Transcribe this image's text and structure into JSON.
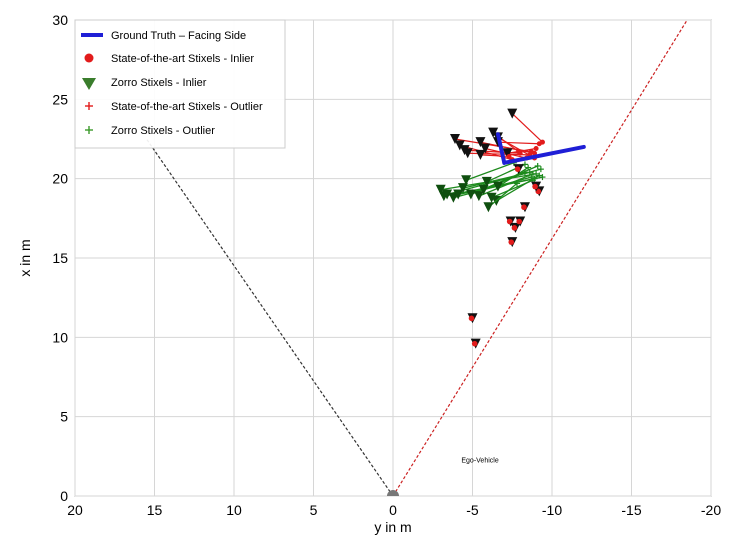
{
  "chart_data": {
    "type": "scatter",
    "xlabel": "y in m",
    "ylabel": "x in m",
    "xlim": [
      20,
      -20
    ],
    "ylim": [
      0,
      30
    ],
    "x_ticks": [
      "20",
      "15",
      "10",
      "5",
      "0",
      "-5",
      "-10",
      "-15",
      "-20"
    ],
    "y_ticks": [
      "0",
      "5",
      "10",
      "15",
      "20",
      "25",
      "30"
    ],
    "grid": true,
    "legend_placement": "top-left",
    "legend": [
      {
        "label": "Ground Truth – Facing Side",
        "marker": "line",
        "color": "#1f1fd6"
      },
      {
        "label": "State-of-the-art Stixels - Inlier",
        "marker": "circle",
        "color": "#e21b1b"
      },
      {
        "label": "Zorro Stixels - Inlier",
        "marker": "triangle-down",
        "color": "#3a7d2c"
      },
      {
        "label": "State-of-the-art Stixels - Outlier",
        "marker": "plus",
        "color": "#e21b1b"
      },
      {
        "label": "Zorro Stixels - Outlier",
        "marker": "plus",
        "color": "#3a9a2a"
      }
    ],
    "annotations": [
      {
        "text": "Ego-Vehicle",
        "x": -4.3,
        "y": 2.1
      }
    ],
    "ego_vehicle": {
      "x": 0,
      "y": 0,
      "color": "#777777"
    },
    "fov_lines": [
      {
        "color": "#333333",
        "from": [
          0,
          0
        ],
        "to": [
          15.5,
          22.5
        ]
      },
      {
        "color": "#cc2222",
        "from": [
          0,
          0
        ],
        "to": [
          -18.5,
          30
        ]
      }
    ],
    "ground_truth": {
      "color": "#1f1fd6",
      "segments": [
        [
          [
            -7.0,
            21.0
          ],
          [
            -12.0,
            22.0
          ]
        ],
        [
          [
            -6.6,
            22.8
          ],
          [
            -7.0,
            21.0
          ]
        ]
      ]
    },
    "zorro_stixels": {
      "color": "#1d8a1d",
      "marker_color": "#0f4f0f",
      "segments": [
        [
          [
            -3.0,
            19.3
          ],
          [
            -9.0,
            20.3
          ]
        ],
        [
          [
            -3.2,
            18.9
          ],
          [
            -8.9,
            20.0
          ]
        ],
        [
          [
            -3.4,
            19.0
          ],
          [
            -9.3,
            20.6
          ]
        ],
        [
          [
            -3.8,
            18.8
          ],
          [
            -8.7,
            20.1
          ]
        ],
        [
          [
            -4.1,
            19.0
          ],
          [
            -9.4,
            20.1
          ]
        ],
        [
          [
            -4.4,
            19.4
          ],
          [
            -8.6,
            20.4
          ]
        ],
        [
          [
            -4.9,
            19.0
          ],
          [
            -9.1,
            20.8
          ]
        ],
        [
          [
            -5.4,
            18.9
          ],
          [
            -8.8,
            20.3
          ]
        ],
        [
          [
            -5.7,
            19.3
          ],
          [
            -8.3,
            20.4
          ]
        ],
        [
          [
            -6.2,
            18.8
          ],
          [
            -8.8,
            19.9
          ]
        ],
        [
          [
            -6.5,
            18.6
          ],
          [
            -9.2,
            20.2
          ]
        ],
        [
          [
            -6.6,
            19.5
          ],
          [
            -8.5,
            20.7
          ]
        ],
        [
          [
            -4.6,
            19.9
          ],
          [
            -7.6,
            21.0
          ]
        ],
        [
          [
            -5.9,
            19.8
          ],
          [
            -8.3,
            20.9
          ]
        ],
        [
          [
            -6.0,
            18.2
          ],
          [
            -7.8,
            19.7
          ]
        ]
      ]
    },
    "sota_stixels": {
      "color": "#e21b1b",
      "marker_color": "#111111",
      "segments": [
        [
          [
            -3.9,
            22.5
          ],
          [
            -8.7,
            21.7
          ]
        ],
        [
          [
            -4.2,
            22.1
          ],
          [
            -7.5,
            21.2
          ]
        ],
        [
          [
            -4.5,
            21.8
          ],
          [
            -8.0,
            21.6
          ]
        ],
        [
          [
            -4.7,
            21.6
          ],
          [
            -8.6,
            21.5
          ]
        ],
        [
          [
            -5.5,
            22.3
          ],
          [
            -8.9,
            21.6
          ]
        ],
        [
          [
            -5.8,
            21.9
          ],
          [
            -8.4,
            21.3
          ]
        ],
        [
          [
            -6.3,
            22.9
          ],
          [
            -7.9,
            21.7
          ]
        ],
        [
          [
            -6.6,
            22.6
          ],
          [
            -8.9,
            21.3
          ]
        ],
        [
          [
            -7.5,
            24.1
          ],
          [
            -9.4,
            22.3
          ]
        ],
        [
          [
            -7.2,
            21.6
          ],
          [
            -9.0,
            21.9
          ]
        ],
        [
          [
            -5.5,
            21.5
          ],
          [
            -7.3,
            21.4
          ]
        ],
        [
          [
            -6.6,
            22.3
          ],
          [
            -9.2,
            22.2
          ]
        ]
      ]
    },
    "sota_points": {
      "color": "#e21b1b",
      "marker_color": "#111111",
      "points": [
        [
          -9.2,
          19.2
        ],
        [
          -8.3,
          18.2
        ],
        [
          -7.4,
          17.3
        ],
        [
          -7.7,
          16.9
        ],
        [
          -8.0,
          17.3
        ],
        [
          -7.5,
          16.0
        ],
        [
          -5.0,
          11.2
        ],
        [
          -5.2,
          9.6
        ],
        [
          -9.0,
          19.5
        ],
        [
          -7.9,
          20.6
        ]
      ]
    }
  }
}
